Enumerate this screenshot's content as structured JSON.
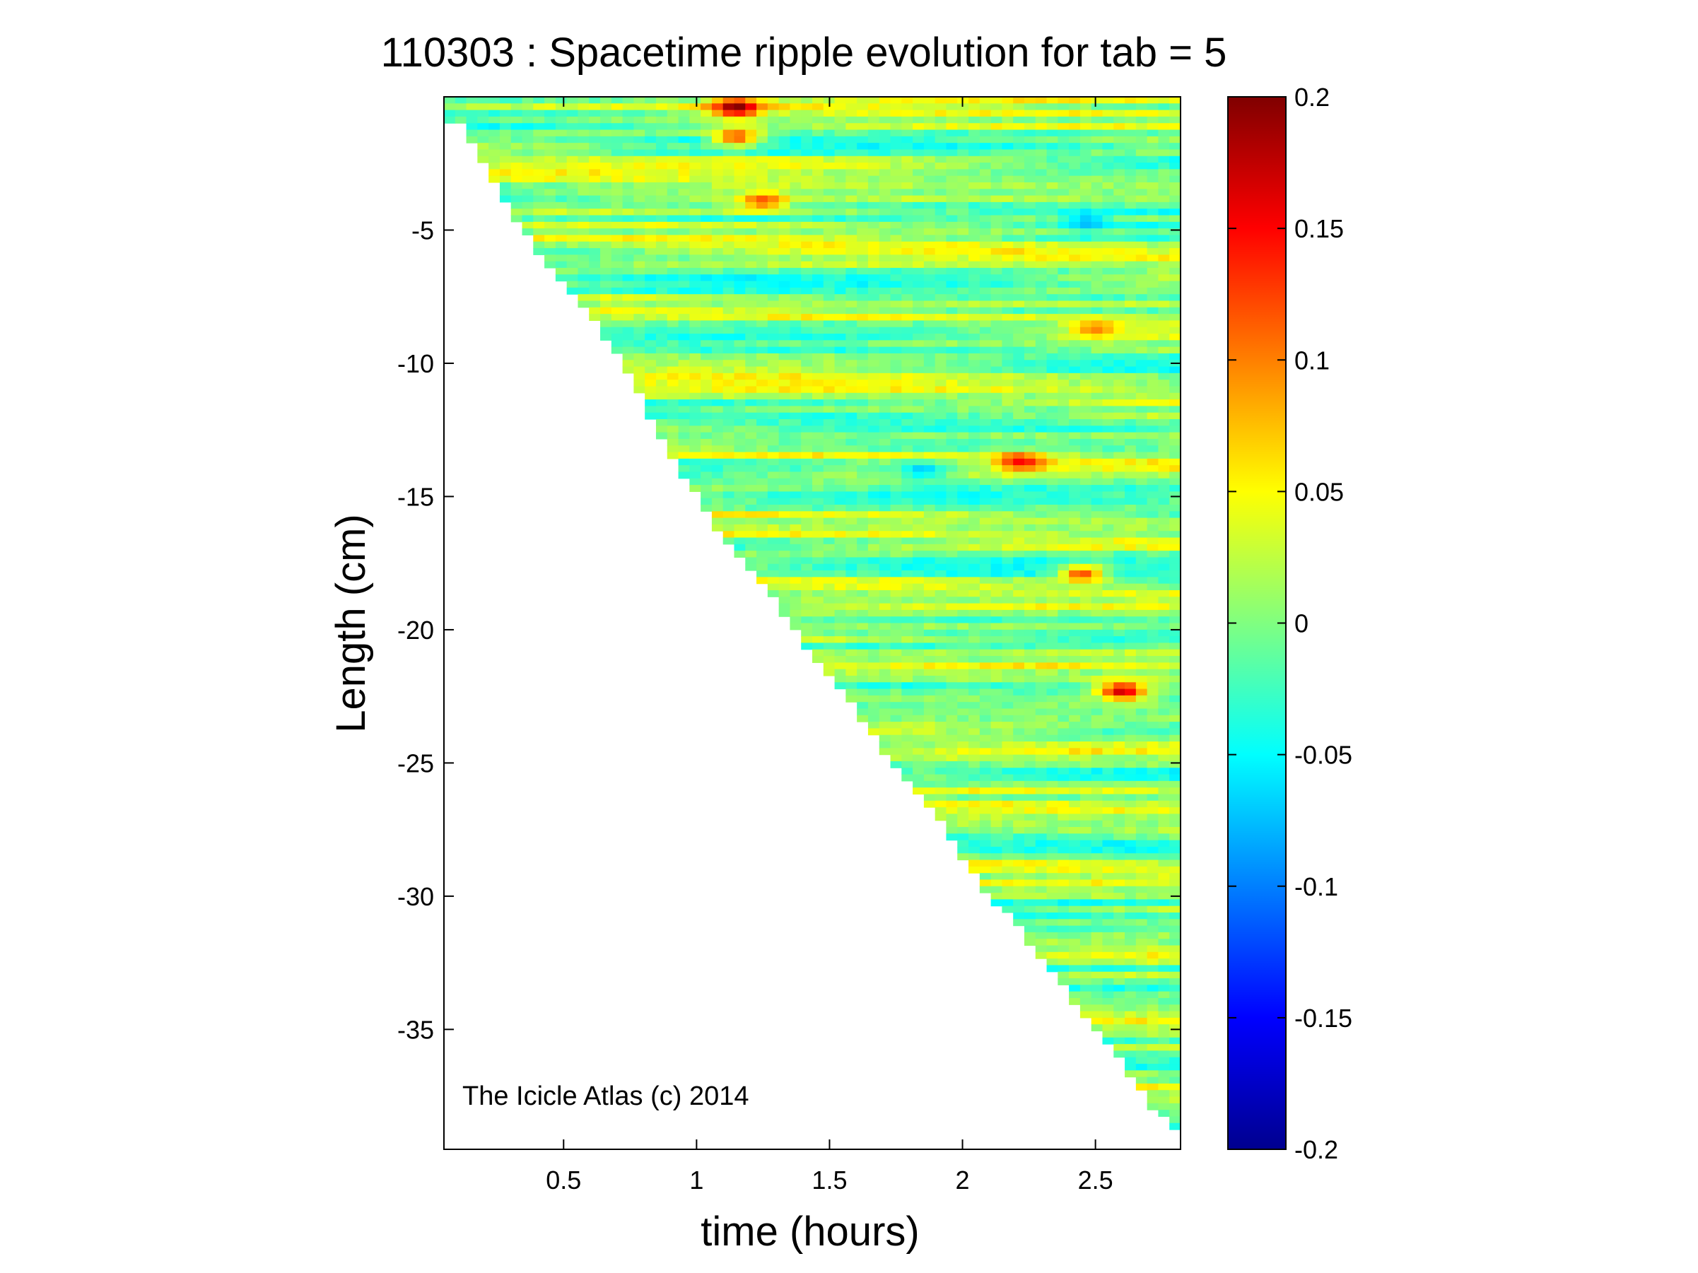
{
  "chart_data": {
    "type": "heatmap",
    "title": "110303 : Spacetime ripple evolution for tab = 5",
    "xlabel": "time (hours)",
    "ylabel": "Length (cm)",
    "xlim": [
      0.05,
      2.82
    ],
    "ylim": [
      -39.5,
      0
    ],
    "x_ticks": [
      0.5,
      1,
      1.5,
      2,
      2.5
    ],
    "x_tick_labels": [
      "0.5",
      "1",
      "1.5",
      "2",
      "2.5"
    ],
    "y_ticks": [
      -5,
      -10,
      -15,
      -20,
      -25,
      -30,
      -35
    ],
    "y_tick_labels": [
      "-5",
      "-10",
      "-15",
      "-20",
      "-25",
      "-30",
      "-35"
    ],
    "colorbar": {
      "colormap": "jet",
      "range": [
        -0.2,
        0.2
      ],
      "ticks": [
        0.2,
        0.15,
        0.1,
        0.05,
        0,
        -0.05,
        -0.1,
        -0.15,
        -0.2
      ],
      "tick_labels": [
        "0.2",
        "0.15",
        "0.1",
        "0.05",
        "0",
        "-0.05",
        "-0.1",
        "-0.15",
        "-0.2"
      ]
    },
    "data_region": {
      "description_of_shape": "staircase: data exists only below the icicle length at each time",
      "icicle_length_vs_time": [
        [
          0.05,
          -1.0
        ],
        [
          0.12,
          -1.0
        ],
        [
          0.18,
          -2.2
        ],
        [
          0.25,
          -3.5
        ],
        [
          0.33,
          -4.7
        ],
        [
          0.4,
          -5.8
        ],
        [
          0.5,
          -7.0
        ],
        [
          0.6,
          -8.2
        ],
        [
          0.7,
          -9.6
        ],
        [
          0.8,
          -11.5
        ],
        [
          0.9,
          -13.5
        ],
        [
          1.0,
          -15.0
        ],
        [
          1.1,
          -16.5
        ],
        [
          1.2,
          -17.8
        ],
        [
          1.3,
          -19.0
        ],
        [
          1.4,
          -20.5
        ],
        [
          1.5,
          -21.8
        ],
        [
          1.6,
          -23.0
        ],
        [
          1.7,
          -24.5
        ],
        [
          1.8,
          -25.8
        ],
        [
          1.9,
          -27.0
        ],
        [
          2.0,
          -28.5
        ],
        [
          2.1,
          -30.0
        ],
        [
          2.2,
          -31.0
        ],
        [
          2.3,
          -32.4
        ],
        [
          2.4,
          -33.7
        ],
        [
          2.5,
          -35.0
        ],
        [
          2.6,
          -36.3
        ],
        [
          2.7,
          -37.8
        ],
        [
          2.82,
          -39.0
        ]
      ],
      "background_value_range": [
        -0.05,
        0.06
      ],
      "notable_peaks": [
        {
          "x": 1.15,
          "y": -0.4,
          "value": 0.2
        },
        {
          "x": 1.15,
          "y": -1.5,
          "value": 0.12
        },
        {
          "x": 2.22,
          "y": -13.7,
          "value": 0.15
        },
        {
          "x": 2.6,
          "y": -22.3,
          "value": 0.17
        },
        {
          "x": 2.45,
          "y": -17.9,
          "value": 0.12
        },
        {
          "x": 2.47,
          "y": -4.7,
          "value": -0.08
        },
        {
          "x": 1.85,
          "y": -14.0,
          "value": -0.07
        },
        {
          "x": 1.25,
          "y": -3.9,
          "value": 0.12
        },
        {
          "x": 2.5,
          "y": -8.7,
          "value": 0.1
        }
      ]
    }
  },
  "annotation": "The Icicle Atlas (c) 2014"
}
